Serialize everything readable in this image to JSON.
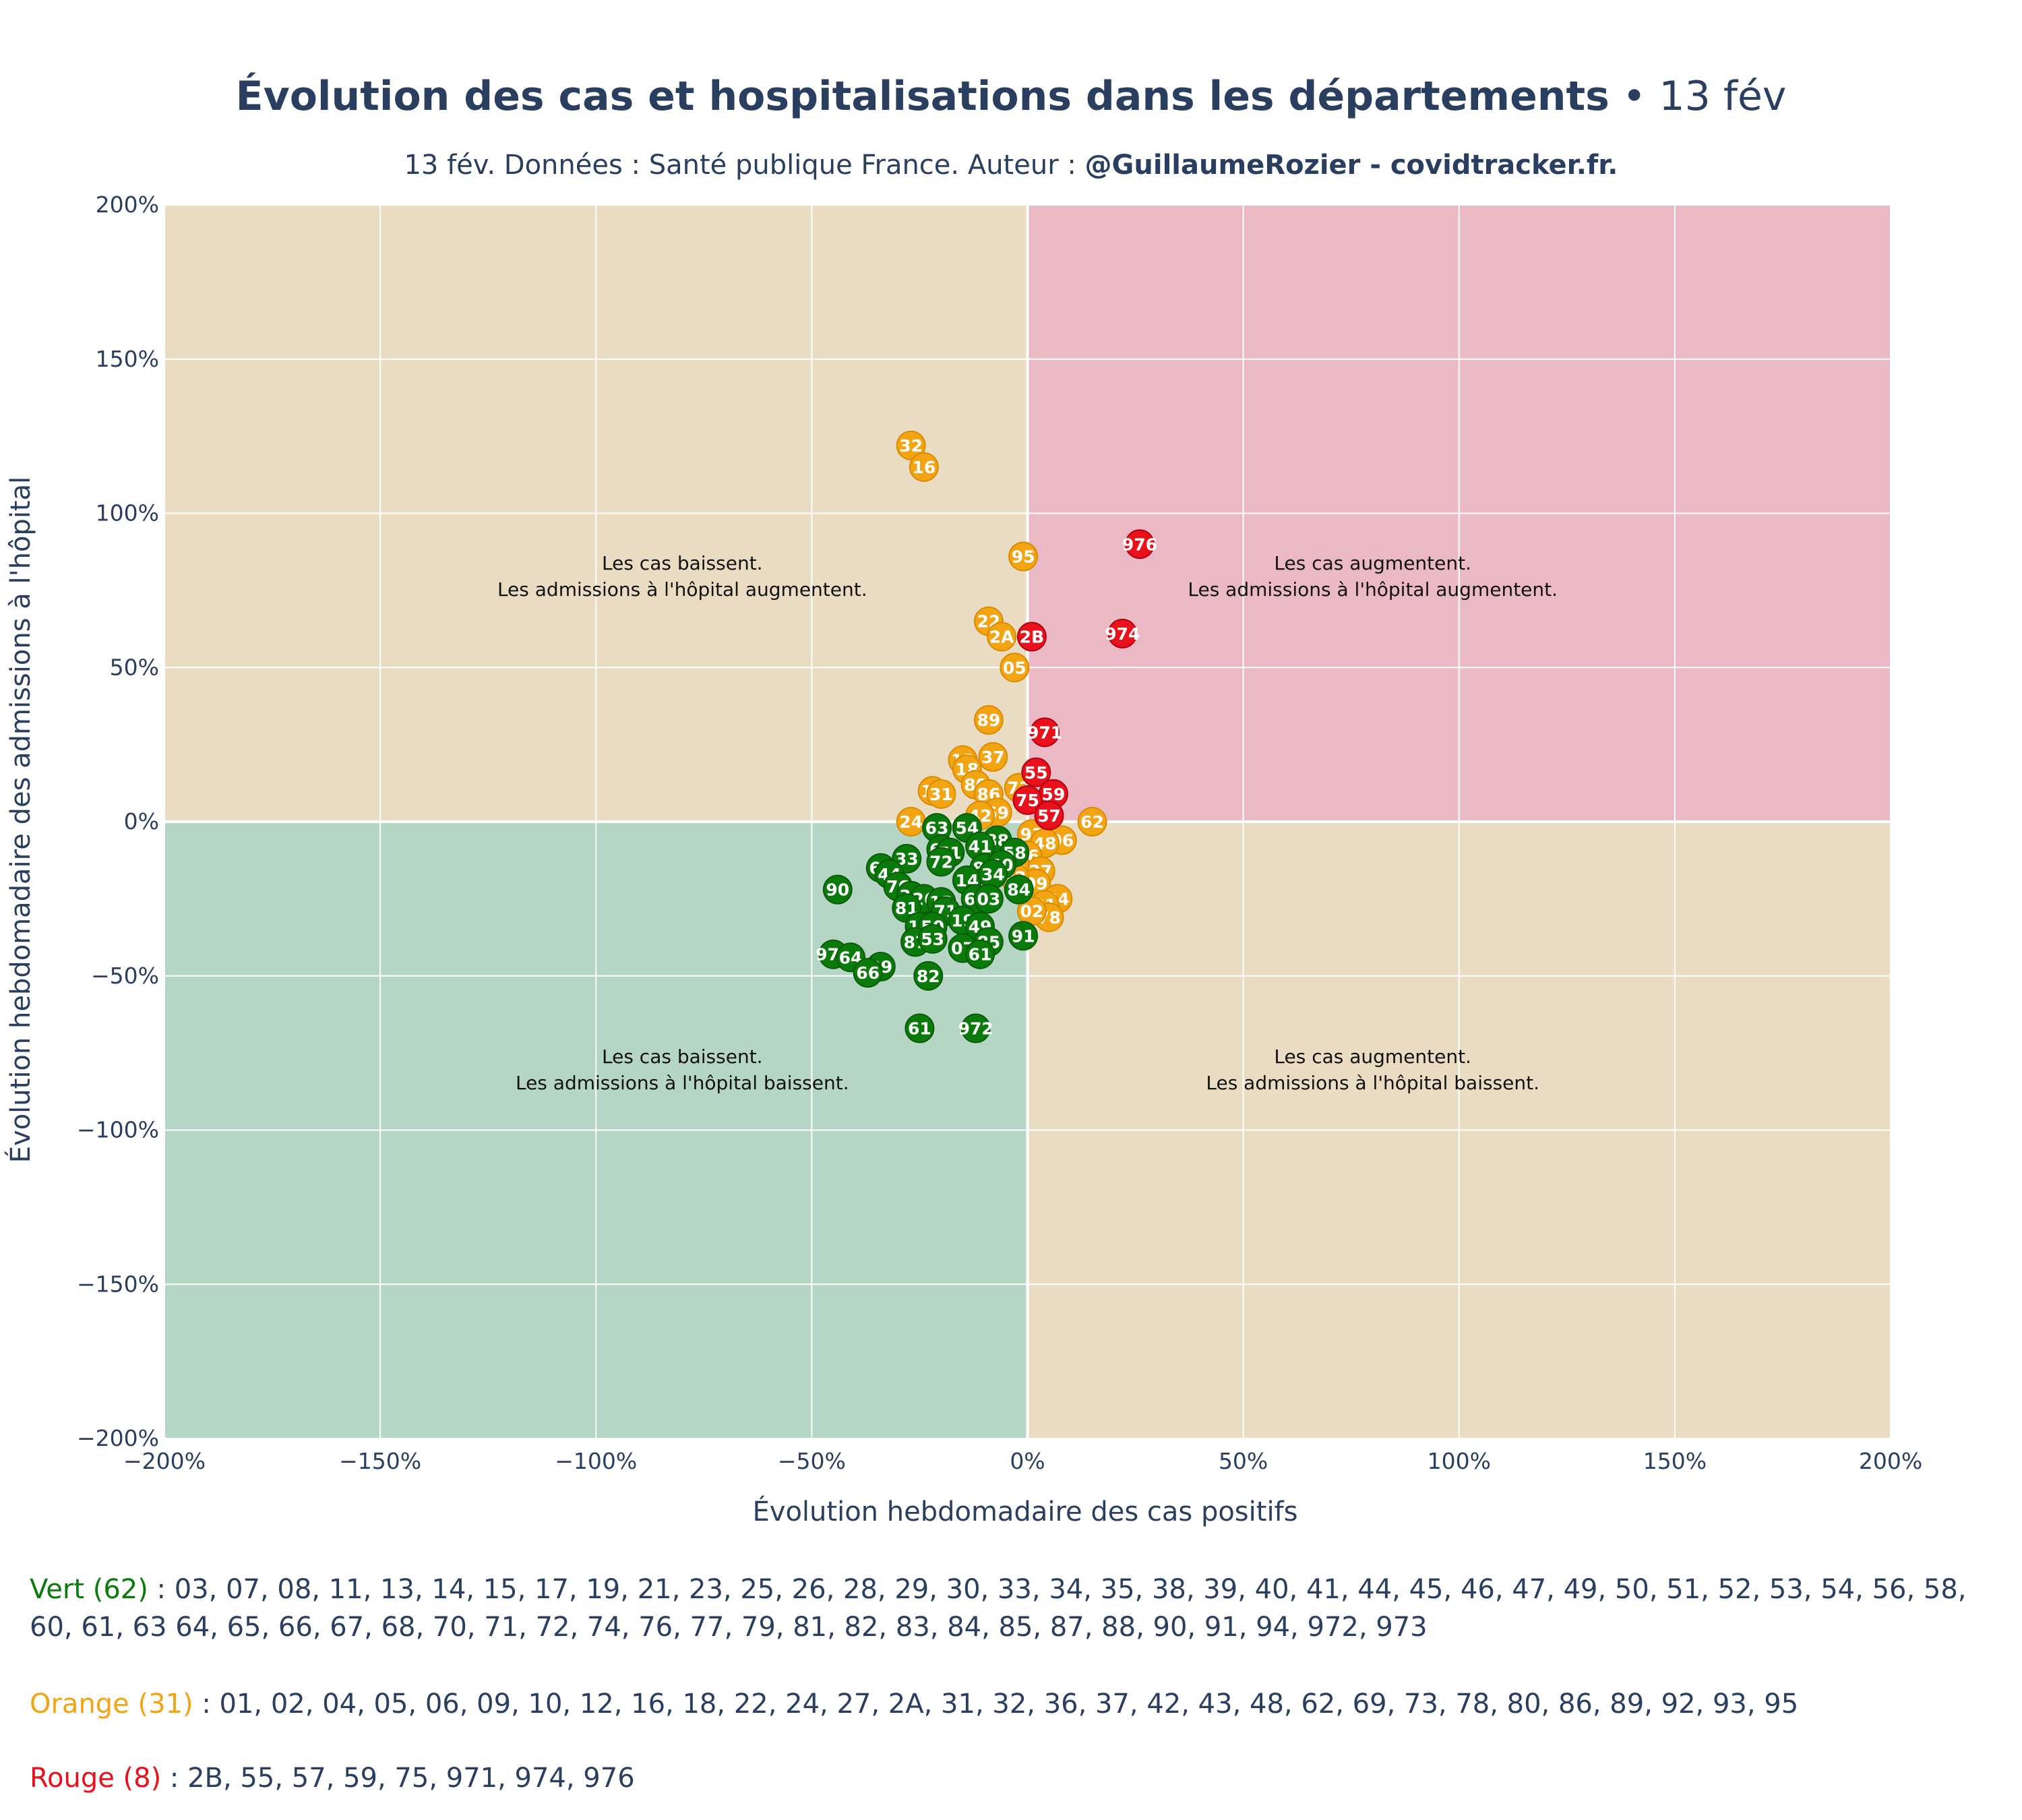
{
  "title": {
    "main": "Évolution des cas et hospitalisations dans les départements",
    "suffix": " • 13 fév"
  },
  "subtitle": {
    "text": "13 fév. Données : Santé publique France. Auteur : ",
    "author": "@GuillaumeRozier - covidtracker.fr."
  },
  "colors": {
    "green_zone": "#b5d6c4",
    "orange_zone": "#eadcc2",
    "red_zone": "#eab9c3",
    "green_marker": "#0a7a0a",
    "orange_marker": "#f2a413",
    "red_marker": "#e8111c",
    "grid": "#ffffff"
  },
  "chart_data": {
    "type": "scatter",
    "xlabel": "Évolution hebdomadaire des cas positifs",
    "ylabel": "Évolution hebdomadaire des admissions à l'hôpital",
    "xlim": [
      -200,
      200
    ],
    "ylim": [
      -200,
      200
    ],
    "x_ticks": [
      -200,
      -150,
      -100,
      -50,
      0,
      50,
      100,
      150,
      200
    ],
    "y_ticks": [
      -200,
      -150,
      -100,
      -50,
      0,
      50,
      100,
      150,
      200
    ],
    "tick_suffix": "%",
    "grid": true,
    "quadrant_annotations": [
      {
        "x": -80,
        "y": 80,
        "lines": [
          "Les cas baissent.",
          "Les admissions à l'hôpital augmentent."
        ]
      },
      {
        "x": 80,
        "y": 80,
        "lines": [
          "Les cas augmentent.",
          "Les admissions à l'hôpital augmentent."
        ]
      },
      {
        "x": -80,
        "y": -80,
        "lines": [
          "Les cas baissent.",
          "Les admissions à l'hôpital baissent."
        ]
      },
      {
        "x": 80,
        "y": -80,
        "lines": [
          "Les cas augmentent.",
          "Les admissions à l'hôpital baissent."
        ]
      }
    ],
    "points": [
      {
        "label": "32",
        "x": -27,
        "y": 122,
        "cat": "orange"
      },
      {
        "label": "16",
        "x": -24,
        "y": 115,
        "cat": "orange"
      },
      {
        "label": "95",
        "x": -1,
        "y": 86,
        "cat": "orange"
      },
      {
        "label": "22",
        "x": -9,
        "y": 65,
        "cat": "orange"
      },
      {
        "label": "2A",
        "x": -6,
        "y": 60,
        "cat": "orange"
      },
      {
        "label": "05",
        "x": -3,
        "y": 50,
        "cat": "orange"
      },
      {
        "label": "89",
        "x": -9,
        "y": 33,
        "cat": "orange"
      },
      {
        "label": "37",
        "x": -8,
        "y": 21,
        "cat": "orange"
      },
      {
        "label": "12",
        "x": -15,
        "y": 20,
        "cat": "orange"
      },
      {
        "label": "18",
        "x": -14,
        "y": 17,
        "cat": "orange"
      },
      {
        "label": "80",
        "x": -12,
        "y": 12,
        "cat": "orange"
      },
      {
        "label": "73",
        "x": -2,
        "y": 11,
        "cat": "orange"
      },
      {
        "label": "86",
        "x": -9,
        "y": 9,
        "cat": "orange"
      },
      {
        "label": "10",
        "x": -22,
        "y": 10,
        "cat": "orange"
      },
      {
        "label": "31",
        "x": -20,
        "y": 9,
        "cat": "orange"
      },
      {
        "label": "69",
        "x": -7,
        "y": 3,
        "cat": "orange"
      },
      {
        "label": "42",
        "x": -11,
        "y": 2,
        "cat": "orange"
      },
      {
        "label": "62",
        "x": 15,
        "y": 0,
        "cat": "orange"
      },
      {
        "label": "24",
        "x": -27,
        "y": 0,
        "cat": "orange"
      },
      {
        "label": "93",
        "x": 1,
        "y": -4,
        "cat": "orange"
      },
      {
        "label": "06",
        "x": 8,
        "y": -6,
        "cat": "orange"
      },
      {
        "label": "48",
        "x": 4,
        "y": -7,
        "cat": "orange"
      },
      {
        "label": "36",
        "x": 0,
        "y": -11,
        "cat": "orange"
      },
      {
        "label": "27",
        "x": 3,
        "y": -16,
        "cat": "orange"
      },
      {
        "label": "09",
        "x": 2,
        "y": -20,
        "cat": "orange"
      },
      {
        "label": "04",
        "x": 7,
        "y": -25,
        "cat": "orange"
      },
      {
        "label": "01",
        "x": 4,
        "y": -27,
        "cat": "orange"
      },
      {
        "label": "78",
        "x": 5,
        "y": -31,
        "cat": "orange"
      },
      {
        "label": "43",
        "x": -3,
        "y": -14,
        "cat": "orange"
      },
      {
        "label": "02",
        "x": 1,
        "y": -29,
        "cat": "orange"
      },
      {
        "label": "92",
        "x": -3,
        "y": -18,
        "cat": "orange"
      },
      {
        "label": "976",
        "x": 26,
        "y": 90,
        "cat": "rouge"
      },
      {
        "label": "974",
        "x": 22,
        "y": 61,
        "cat": "rouge"
      },
      {
        "label": "2B",
        "x": 1,
        "y": 60,
        "cat": "rouge"
      },
      {
        "label": "971",
        "x": 4,
        "y": 29,
        "cat": "rouge"
      },
      {
        "label": "55",
        "x": 2,
        "y": 16,
        "cat": "rouge"
      },
      {
        "label": "59",
        "x": 6,
        "y": 9,
        "cat": "rouge"
      },
      {
        "label": "75",
        "x": 0,
        "y": 7,
        "cat": "rouge"
      },
      {
        "label": "57",
        "x": 5,
        "y": 2,
        "cat": "rouge"
      },
      {
        "label": "63",
        "x": -21,
        "y": -2,
        "cat": "vert"
      },
      {
        "label": "54",
        "x": -14,
        "y": -2,
        "cat": "vert"
      },
      {
        "label": "88",
        "x": -7,
        "y": -6,
        "cat": "vert"
      },
      {
        "label": "41",
        "x": -11,
        "y": -8,
        "cat": "vert"
      },
      {
        "label": "58",
        "x": -3,
        "y": -10,
        "cat": "vert"
      },
      {
        "label": "65",
        "x": -20,
        "y": -9,
        "cat": "vert"
      },
      {
        "label": "51",
        "x": -18,
        "y": -10,
        "cat": "vert"
      },
      {
        "label": "33",
        "x": -28,
        "y": -12,
        "cat": "vert"
      },
      {
        "label": "72",
        "x": -20,
        "y": -13,
        "cat": "vert"
      },
      {
        "label": "83",
        "x": -10,
        "y": -15,
        "cat": "vert"
      },
      {
        "label": "40",
        "x": -6,
        "y": -14,
        "cat": "vert"
      },
      {
        "label": "67",
        "x": -34,
        "y": -15,
        "cat": "vert"
      },
      {
        "label": "44",
        "x": -32,
        "y": -17,
        "cat": "vert"
      },
      {
        "label": "14",
        "x": -14,
        "y": -19,
        "cat": "vert"
      },
      {
        "label": "34",
        "x": -8,
        "y": -17,
        "cat": "vert"
      },
      {
        "label": "76",
        "x": -30,
        "y": -21,
        "cat": "vert"
      },
      {
        "label": "90",
        "x": -44,
        "y": -22,
        "cat": "vert"
      },
      {
        "label": "84",
        "x": -2,
        "y": -22,
        "cat": "vert"
      },
      {
        "label": "39",
        "x": -27,
        "y": -24,
        "cat": "vert"
      },
      {
        "label": "26",
        "x": -24,
        "y": -25,
        "cat": "vert"
      },
      {
        "label": "60",
        "x": -12,
        "y": -25,
        "cat": "vert"
      },
      {
        "label": "03",
        "x": -9,
        "y": -25,
        "cat": "vert"
      },
      {
        "label": "13",
        "x": -20,
        "y": -26,
        "cat": "vert"
      },
      {
        "label": "81",
        "x": -28,
        "y": -28,
        "cat": "vert"
      },
      {
        "label": "71",
        "x": -19,
        "y": -29,
        "cat": "vert"
      },
      {
        "label": "17",
        "x": -25,
        "y": -34,
        "cat": "vert"
      },
      {
        "label": "19",
        "x": -15,
        "y": -32,
        "cat": "vert"
      },
      {
        "label": "50",
        "x": -22,
        "y": -34,
        "cat": "vert"
      },
      {
        "label": "49",
        "x": -11,
        "y": -34,
        "cat": "vert"
      },
      {
        "label": "91",
        "x": -1,
        "y": -37,
        "cat": "vert"
      },
      {
        "label": "87",
        "x": -26,
        "y": -39,
        "cat": "vert"
      },
      {
        "label": "53",
        "x": -22,
        "y": -38,
        "cat": "vert"
      },
      {
        "label": "85",
        "x": -9,
        "y": -39,
        "cat": "vert"
      },
      {
        "label": "07",
        "x": -15,
        "y": -41,
        "cat": "vert"
      },
      {
        "label": "61",
        "x": -11,
        "y": -43,
        "cat": "vert"
      },
      {
        "label": "973",
        "x": -45,
        "y": -43,
        "cat": "vert"
      },
      {
        "label": "64",
        "x": -41,
        "y": -44,
        "cat": "vert"
      },
      {
        "label": "29",
        "x": -34,
        "y": -47,
        "cat": "vert"
      },
      {
        "label": "66",
        "x": -37,
        "y": -49,
        "cat": "vert"
      },
      {
        "label": "82",
        "x": -23,
        "y": -50,
        "cat": "vert"
      },
      {
        "label": "61b",
        "display": "61",
        "x": -25,
        "y": -67,
        "cat": "vert"
      },
      {
        "label": "972",
        "x": -12,
        "y": -67,
        "cat": "vert"
      }
    ]
  },
  "legend": [
    {
      "cat_label": "Vert (62)",
      "color": "#0a7a0a",
      "sep": " : ",
      "list": "03, 07, 08, 11, 13, 14, 15, 17, 19, 21, 23, 25, 26, 28, 29, 30, 33, 34, 35, 38, 39, 40, 41, 44, 45, 46, 47, 49, 50, 51, 52, 53, 54, 56, 58, 60, 61, 63 64, 65, 66, 67, 68, 70, 71, 72, 74, 76, 77, 79, 81, 82, 83, 84, 85, 87, 88, 90, 91, 94, 972, 973"
    },
    {
      "cat_label": "Orange (31)",
      "color": "#f2a413",
      "sep": " : ",
      "list": "01, 02, 04, 05, 06, 09, 10, 12, 16, 18, 22, 24, 27, 2A, 31, 32, 36, 37, 42, 43, 48, 62, 69, 73, 78, 80, 86, 89, 92, 93, 95"
    },
    {
      "cat_label": "Rouge (8)",
      "color": "#e8111c",
      "sep": " : ",
      "list": "2B, 55, 57, 59, 75, 971, 974, 976"
    }
  ]
}
